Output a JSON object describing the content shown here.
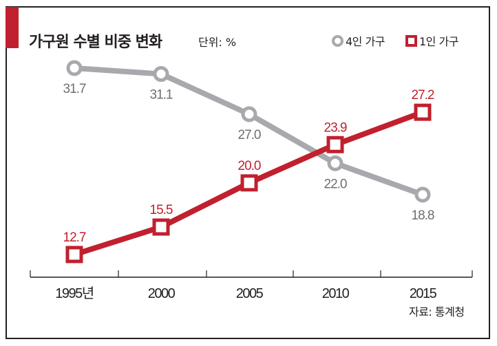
{
  "chart_data": {
    "type": "line",
    "title": "가구원 수별 비중 변화",
    "unit_label": "단위: %",
    "categories": [
      "1995년",
      "2000",
      "2005",
      "2010",
      "2015"
    ],
    "series": [
      {
        "name": "4인 가구",
        "color": "#a7a9ac",
        "label_color": "#6d6e71",
        "marker": "circle",
        "values": [
          31.7,
          31.1,
          27.0,
          22.0,
          18.8
        ],
        "labels": [
          "31.7",
          "31.1",
          "27.0",
          "22.0",
          "18.8"
        ]
      },
      {
        "name": "1인 가구",
        "color": "#c1202e",
        "label_color": "#c1202e",
        "marker": "square",
        "values": [
          12.7,
          15.5,
          20.0,
          23.9,
          27.2
        ],
        "labels": [
          "12.7",
          "15.5",
          "20.0",
          "23.9",
          "27.2"
        ]
      }
    ],
    "xlabel": "",
    "ylabel": "",
    "ylim": [
      12.7,
      31.7
    ],
    "grid": false,
    "legend_position": "top-right",
    "source": "자료: 통계청"
  },
  "colors": {
    "accent": "#c1202e",
    "gray": "#a7a9ac",
    "text": "#231f20"
  }
}
